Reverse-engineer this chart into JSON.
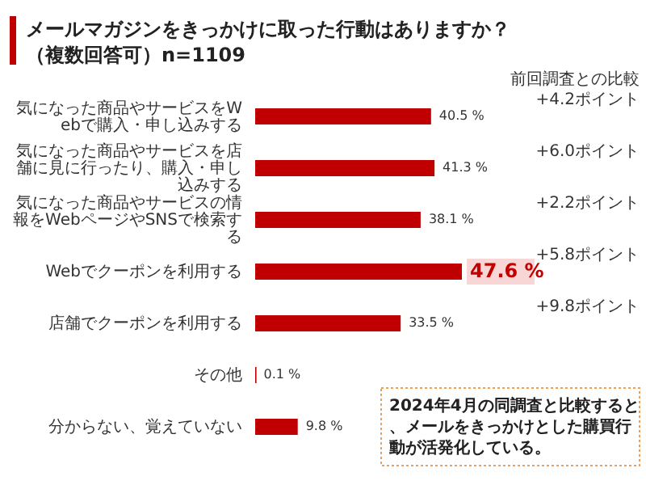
{
  "chart_data": {
    "type": "bar",
    "orientation": "horizontal",
    "title": "メールマガジンをきっかけに取った行動はありますか？",
    "subtitle": "（複数回答可）n=1109",
    "categories": [
      "気になった商品やサービスをWebで購入・申し込みする",
      "気になった商品やサービスを店舗に見に行ったり、購入・申し込みする",
      "気になった商品やサービスの情報をWebページやSNSで検索する",
      "Webでクーポンを利用する",
      "店舗でクーポンを利用する",
      "その他",
      "分からない、覚えていない"
    ],
    "values": [
      40.5,
      41.3,
      38.1,
      47.6,
      33.5,
      0.1,
      9.8
    ],
    "value_labels": [
      "40.5 %",
      "41.3 %",
      "38.1 %",
      "47.6 %",
      "33.5 %",
      "0.1 %",
      "9.8 %"
    ],
    "color": "#c00000",
    "annotations": [
      "前回調査との比較",
      "+4.2ポイント",
      "+6.0ポイント",
      "+2.2ポイント",
      "+5.8ポイント",
      "+9.8ポイント",
      "2024年4月の同調査と比較すると、メールをきっかけとした購買行動が活発化している。"
    ]
  }
}
